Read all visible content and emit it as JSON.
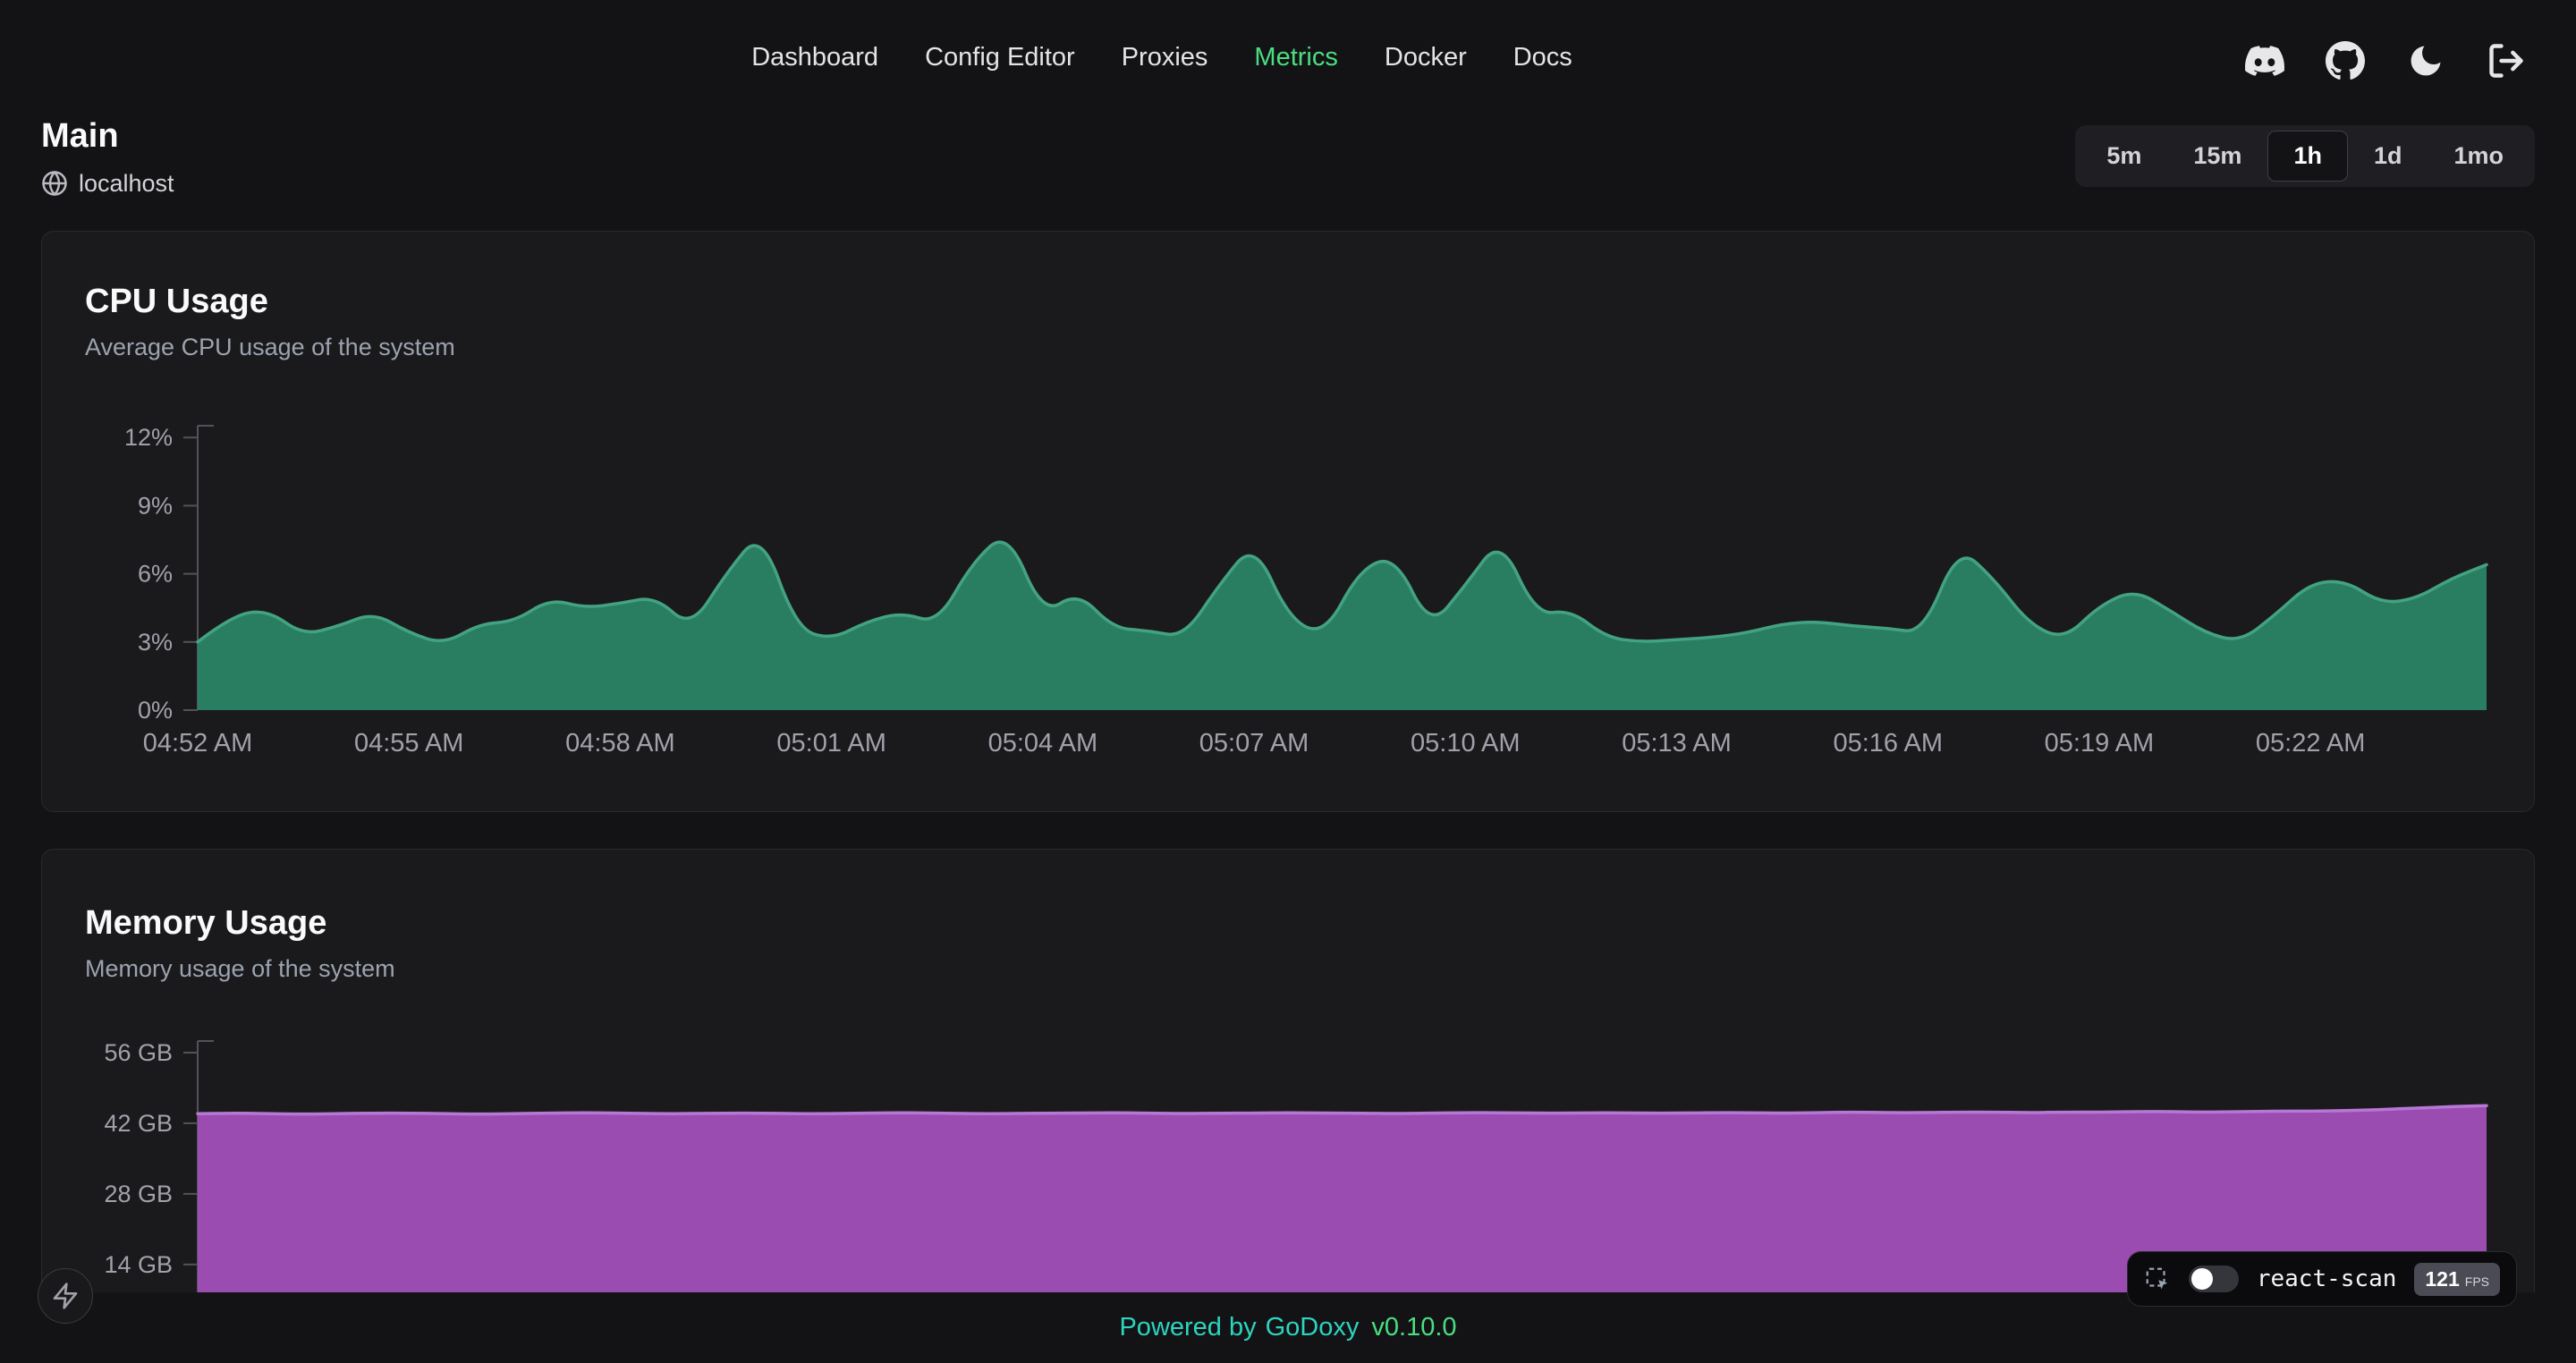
{
  "nav": {
    "items": [
      {
        "label": "Dashboard",
        "active": false
      },
      {
        "label": "Config Editor",
        "active": false
      },
      {
        "label": "Proxies",
        "active": false
      },
      {
        "label": "Metrics",
        "active": true
      },
      {
        "label": "Docker",
        "active": false
      },
      {
        "label": "Docs",
        "active": false
      }
    ],
    "icons": [
      "discord-icon",
      "github-icon",
      "dark-mode-icon",
      "logout-icon"
    ]
  },
  "header": {
    "title": "Main",
    "host": "localhost",
    "host_icon": "globe-icon"
  },
  "time_range": {
    "options": [
      "5m",
      "15m",
      "1h",
      "1d",
      "1mo"
    ],
    "selected": "1h"
  },
  "footer": {
    "powered_by": "Powered by",
    "brand": "GoDoxy",
    "version": "v0.10.0"
  },
  "react_scan": {
    "label": "react-scan",
    "fps": "121",
    "fps_unit": "FPS",
    "icons": [
      "inspect-icon",
      "toggle-off"
    ]
  },
  "colors": {
    "accent_green": "#4ade80",
    "teal": "#2dd4bf",
    "axis_color": "#52525b",
    "label_color": "#a1a1aa"
  },
  "chart_data": [
    {
      "id": "cpu",
      "type": "area",
      "title": "CPU Usage",
      "subtitle": "Average CPU usage of the system",
      "unit": "%",
      "x_ticks": [
        "04:52 AM",
        "04:55 AM",
        "04:58 AM",
        "05:01 AM",
        "05:04 AM",
        "05:07 AM",
        "05:10 AM",
        "05:13 AM",
        "05:16 AM",
        "05:19 AM",
        "05:22 AM"
      ],
      "x_tick_interval_minutes": 3,
      "sample_interval_seconds": 30,
      "y_ticks": [
        0,
        3,
        6,
        9,
        12
      ],
      "y_tick_labels": [
        "0%",
        "3%",
        "6%",
        "9%",
        "12%"
      ],
      "ylim": [
        0,
        12.5
      ],
      "grid": false,
      "legend": false,
      "colors": {
        "fill": "#2a8767",
        "stroke": "#43a381",
        "fill_opacity": 0.92
      },
      "series": [
        {
          "name": "cpu_percent",
          "values": [
            3.0,
            4.2,
            4.4,
            3.3,
            3.7,
            4.3,
            3.4,
            2.9,
            3.8,
            3.9,
            4.9,
            4.5,
            4.7,
            5.0,
            3.6,
            6.0,
            7.9,
            3.6,
            3.1,
            3.9,
            4.3,
            3.8,
            6.5,
            7.9,
            4.2,
            5.2,
            3.6,
            3.5,
            3.2,
            5.5,
            7.4,
            4.0,
            3.3,
            6.2,
            6.8,
            3.6,
            5.5,
            7.6,
            4.2,
            4.4,
            3.2,
            3.0,
            3.1,
            3.2,
            3.4,
            3.8,
            3.9,
            3.7,
            3.6,
            3.4,
            7.2,
            5.8,
            3.8,
            3.1,
            4.6,
            5.3,
            4.4,
            3.4,
            3.0,
            4.2,
            5.6,
            5.7,
            4.7,
            4.9,
            5.8,
            6.4
          ]
        }
      ]
    },
    {
      "id": "memory",
      "type": "area",
      "title": "Memory Usage",
      "subtitle": "Memory usage of the system",
      "unit": "GB",
      "x_ticks": [],
      "x_tick_interval_minutes": 3,
      "sample_interval_seconds": 30,
      "y_ticks": [
        14,
        28,
        42,
        56
      ],
      "y_tick_labels": [
        "14 GB",
        "28 GB",
        "42 GB",
        "56 GB"
      ],
      "ylim": [
        0,
        56
      ],
      "grid": false,
      "legend": false,
      "colors": {
        "fill": "#a24fb8",
        "stroke": "#b678d4",
        "fill_opacity": 0.95
      },
      "series": [
        {
          "name": "memory_gb",
          "values": [
            43.9,
            44.0,
            43.9,
            43.8,
            43.9,
            44.0,
            44.0,
            43.9,
            43.8,
            43.9,
            44.0,
            44.1,
            44.0,
            43.9,
            43.9,
            44.0,
            44.0,
            43.9,
            43.9,
            44.0,
            44.1,
            44.0,
            43.9,
            43.9,
            44.0,
            44.0,
            44.1,
            44.0,
            43.9,
            44.0,
            44.0,
            44.1,
            44.0,
            44.0,
            43.9,
            44.0,
            44.1,
            44.1,
            44.0,
            44.0,
            44.1,
            44.0,
            44.0,
            44.1,
            44.1,
            44.0,
            44.1,
            44.2,
            44.1,
            44.1,
            44.2,
            44.2,
            44.1,
            44.2,
            44.2,
            44.3,
            44.3,
            44.2,
            44.3,
            44.4,
            44.4,
            44.5,
            44.7,
            45.0,
            45.3,
            45.5
          ]
        }
      ]
    }
  ]
}
